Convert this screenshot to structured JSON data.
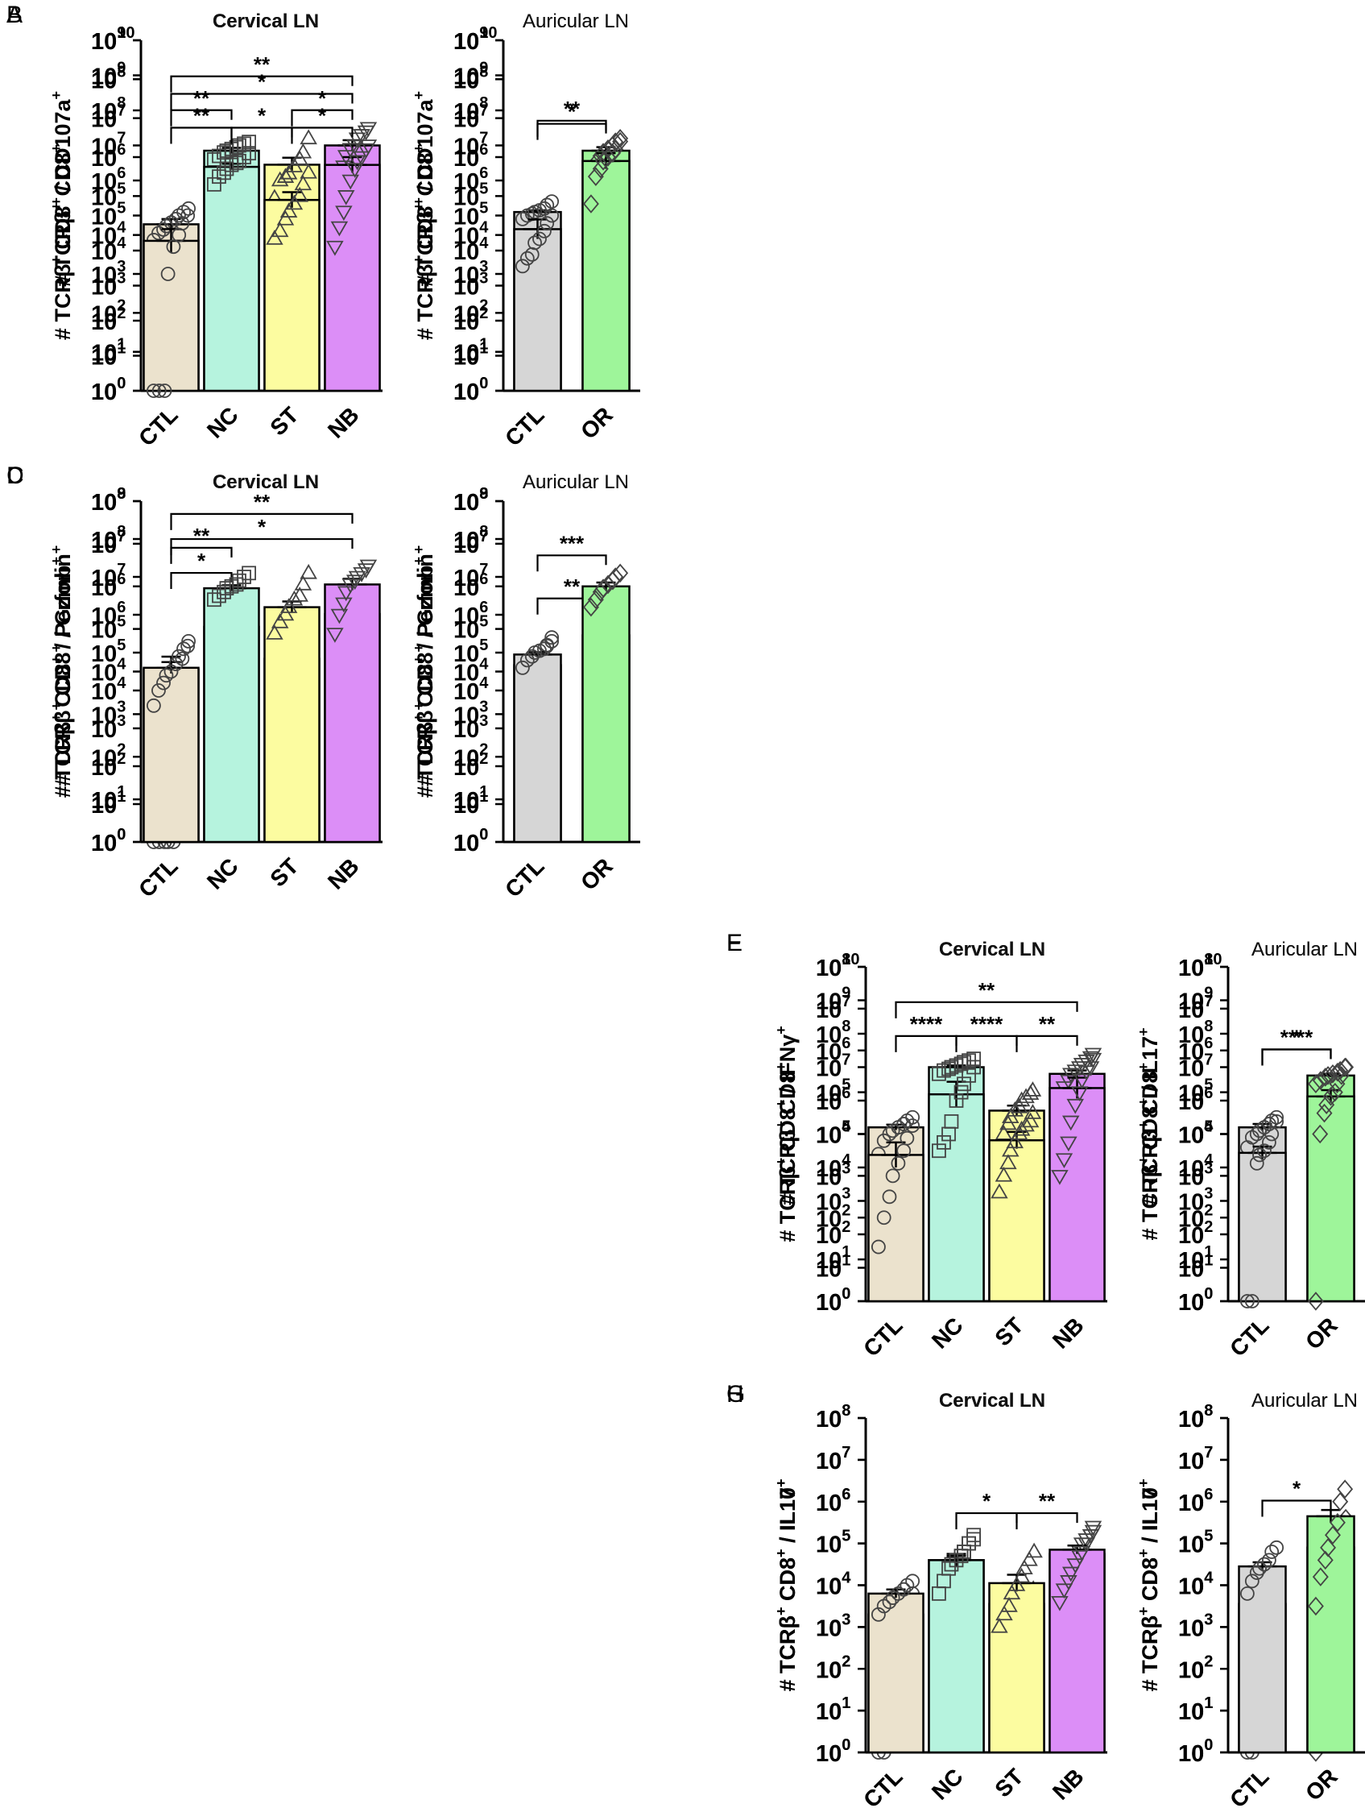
{
  "figure": {
    "colors": {
      "CTL_cervical": "#ebe2cd",
      "NC": "#b6f3de",
      "ST": "#fcfca0",
      "NB": "#dc8ef7",
      "CTL_auricular": "#d6d6d6",
      "OR": "#9ef59a",
      "axis": "#000000"
    },
    "marker_shapes": {
      "CTL": "circle",
      "NC": "square",
      "ST": "triangle-up",
      "NB": "triangle-down",
      "OR": "diamond"
    }
  },
  "chart_data": [
    {
      "id": "A1",
      "panel_letter": "A",
      "type": "bar",
      "title": "Cervical LN",
      "ylabel_text": "# TCRβ+ CD8+",
      "ylim_exp": [
        0,
        10
      ],
      "categories": [
        "CTL",
        "NC",
        "ST",
        "NB"
      ],
      "mean_exp": [
        4.75,
        6.85,
        6.45,
        7.0
      ],
      "sem_exp": [
        0.15,
        0.08,
        0.2,
        0.15
      ],
      "log_base": 10,
      "points_exp": [
        [
          4.3,
          4.5,
          4.6,
          4.7,
          4.8,
          4.9,
          5.0,
          5.1,
          5.2
        ],
        [
          6.6,
          6.7,
          6.8,
          6.85,
          6.9,
          6.95,
          7.0,
          7.05,
          7.1
        ],
        [
          5.5,
          6.0,
          6.1,
          6.2,
          6.4,
          6.6,
          6.8,
          7.2
        ],
        [
          5.8,
          6.1,
          6.4,
          6.7,
          6.9,
          7.0,
          7.2,
          7.3,
          7.4,
          7.5
        ]
      ],
      "significance": [
        {
          "from": "CTL",
          "to": "NB",
          "label": "**"
        },
        {
          "from": "CTL",
          "to": "NC",
          "label": "**"
        },
        {
          "from": "ST",
          "to": "NB",
          "label": "*"
        }
      ]
    },
    {
      "id": "A2",
      "panel_letter": "",
      "type": "bar",
      "title": "Auricular LN",
      "ylabel_text": "# TCRβ+ CD8+",
      "ylim_exp": [
        0,
        10
      ],
      "categories": [
        "CTL",
        "OR"
      ],
      "mean_exp": [
        5.1,
        6.85
      ],
      "sem_exp": [
        0.05,
        0.1
      ],
      "log_base": 10,
      "points_exp": [
        [
          4.9,
          5.0,
          5.05,
          5.1,
          5.15,
          5.2,
          5.3,
          5.4
        ],
        [
          6.3,
          6.5,
          6.7,
          6.8,
          6.9,
          7.0,
          7.1,
          7.2
        ]
      ],
      "significance": [
        {
          "from": "CTL",
          "to": "OR",
          "label": "**"
        }
      ]
    },
    {
      "id": "B1",
      "panel_letter": "B",
      "type": "bar",
      "title": "Cervical LN",
      "ylabel_text": "# TCRβ+ CD8+ / CD107a+",
      "ylim_exp": [
        0,
        9
      ],
      "categories": [
        "CTL",
        "NC",
        "ST",
        "NB"
      ],
      "mean_exp": [
        3.85,
        5.75,
        4.9,
        5.8
      ],
      "sem_exp": [
        0.3,
        0.08,
        0.2,
        0.2
      ],
      "log_base": 10,
      "points_exp": [
        [
          0,
          0,
          0,
          3.0,
          3.7,
          4.0,
          4.3,
          4.5
        ],
        [
          5.3,
          5.5,
          5.6,
          5.7,
          5.8,
          5.85,
          5.9,
          6.0,
          6.1
        ],
        [
          3.9,
          4.1,
          4.4,
          4.6,
          4.8,
          5.0,
          5.3,
          5.6
        ],
        [
          3.7,
          4.2,
          4.6,
          5.0,
          5.4,
          5.7,
          5.9,
          6.0,
          6.2,
          6.3
        ]
      ],
      "significance": [
        {
          "from": "CTL",
          "to": "NB",
          "label": "*"
        },
        {
          "from": "CTL",
          "to": "NC",
          "label": "**"
        },
        {
          "from": "NC",
          "to": "ST",
          "label": "*"
        },
        {
          "from": "ST",
          "to": "NB",
          "label": "*"
        }
      ]
    },
    {
      "id": "B2",
      "panel_letter": "",
      "type": "bar",
      "title": "Auricular LN",
      "ylabel_text": "# TCRβ+ CD8+ / CD107a+",
      "ylim_exp": [
        0,
        9
      ],
      "categories": [
        "CTL",
        "OR"
      ],
      "mean_exp": [
        4.15,
        5.9
      ],
      "sem_exp": [
        0.25,
        0.2
      ],
      "log_base": 10,
      "points_exp": [
        [
          3.2,
          3.4,
          3.5,
          3.8,
          3.9,
          4.1,
          4.3,
          4.5
        ],
        [
          4.8,
          5.5,
          5.7,
          5.9,
          6.0,
          6.1,
          6.2,
          6.4
        ]
      ],
      "significance": [
        {
          "from": "CTL",
          "to": "OR",
          "label": "*"
        }
      ]
    },
    {
      "id": "C1",
      "panel_letter": "C",
      "type": "bar",
      "title": "Cervical LN",
      "ylabel_text": "# TCRβ+ CD8+ / Gzmb+",
      "ylim_exp": [
        0,
        8
      ],
      "categories": [
        "CTL",
        "NC",
        "ST",
        "NB"
      ],
      "mean_exp": [
        4.05,
        5.05,
        4.3,
        5.35
      ],
      "sem_exp": [
        0.3,
        0.1,
        0.15,
        0.1
      ],
      "log_base": 10,
      "points_exp": [
        [
          0,
          0,
          0,
          0,
          0,
          3.8,
          4.3,
          4.6
        ],
        [
          4.3,
          4.6,
          4.8,
          5.0,
          5.1,
          5.2,
          5.4,
          5.6,
          5.7
        ],
        [
          3.4,
          3.8,
          4.0,
          4.2,
          4.4,
          4.5,
          4.7,
          5.2
        ],
        [
          3.0,
          3.7,
          4.3,
          4.8,
          5.1,
          5.3,
          5.5,
          5.6,
          5.8,
          5.9
        ]
      ],
      "significance": [
        {
          "from": "CTL",
          "to": "NB",
          "label": "*"
        },
        {
          "from": "CTL",
          "to": "NC",
          "label": "*"
        }
      ]
    },
    {
      "id": "C2",
      "panel_letter": "",
      "type": "bar",
      "title": "Auricular LN",
      "ylabel_text": "# TCRβ+ CD8+ / Gzmb+",
      "ylim_exp": [
        0,
        8
      ],
      "categories": [
        "CTL",
        "OR"
      ],
      "mean_exp": [
        4.15,
        4.85
      ],
      "sem_exp": [
        0.2,
        0.1
      ],
      "log_base": 10,
      "points_exp": [
        [
          3.0,
          3.2,
          3.4,
          3.6,
          3.9,
          4.2,
          4.6,
          4.8
        ],
        [
          4.3,
          4.5,
          4.7,
          4.8,
          4.9,
          5.0,
          5.1,
          5.3
        ]
      ],
      "significance": [
        {
          "from": "CTL",
          "to": "OR",
          "label": "**"
        }
      ]
    },
    {
      "id": "D1",
      "panel_letter": "D",
      "type": "bar",
      "title": "Cervical LN",
      "ylabel_text": "# TCRβ+ CD8+ / Perforin+",
      "ylim_exp": [
        0,
        9
      ],
      "categories": [
        "CTL",
        "NC",
        "ST",
        "NB"
      ],
      "mean_exp": [
        4.6,
        6.7,
        6.2,
        6.8
      ],
      "sem_exp": [
        0.15,
        0.08,
        0.15,
        0.15
      ],
      "log_base": 10,
      "points_exp": [
        [
          3.6,
          4.0,
          4.2,
          4.4,
          4.5,
          4.7,
          4.9,
          5.1,
          5.3
        ],
        [
          6.4,
          6.5,
          6.6,
          6.7,
          6.75,
          6.8,
          6.9,
          7.0,
          7.1
        ],
        [
          5.5,
          5.8,
          6.0,
          6.2,
          6.4,
          6.5,
          6.8,
          7.1
        ],
        [
          5.5,
          6.0,
          6.3,
          6.6,
          6.8,
          6.9,
          7.0,
          7.1,
          7.2,
          7.3
        ]
      ],
      "significance": [
        {
          "from": "CTL",
          "to": "NB",
          "label": "**"
        },
        {
          "from": "CTL",
          "to": "NC",
          "label": "**"
        }
      ]
    },
    {
      "id": "D2",
      "panel_letter": "",
      "type": "bar",
      "title": "Auricular LN",
      "ylabel_text": "# TCRβ+ CD8+ / Perforin+",
      "ylim_exp": [
        0,
        9
      ],
      "categories": [
        "CTL",
        "OR"
      ],
      "mean_exp": [
        4.95,
        6.75
      ],
      "sem_exp": [
        0.06,
        0.1
      ],
      "log_base": 10,
      "points_exp": [
        [
          4.6,
          4.8,
          4.9,
          5.0,
          5.05,
          5.1,
          5.2,
          5.3
        ],
        [
          6.2,
          6.4,
          6.6,
          6.7,
          6.8,
          6.9,
          7.0,
          7.1
        ]
      ],
      "significance": [
        {
          "from": "CTL",
          "to": "OR",
          "label": "***"
        }
      ]
    },
    {
      "id": "E1",
      "panel_letter": "E",
      "type": "bar",
      "title": "Cervical LN",
      "ylabel_text": "# TCRβ+ CD8+",
      "ylim_exp": [
        0,
        10
      ],
      "categories": [
        "CTL",
        "NC",
        "ST",
        "NB"
      ],
      "mean_exp": [
        5.2,
        7.0,
        5.7,
        6.8
      ],
      "sem_exp": [
        0.08,
        0.05,
        0.15,
        0.1
      ],
      "log_base": 10,
      "points_exp": [
        [
          4.4,
          4.8,
          5.0,
          5.1,
          5.2,
          5.3,
          5.4,
          5.5
        ],
        [
          6.8,
          6.9,
          6.95,
          7.0,
          7.05,
          7.1,
          7.15,
          7.2,
          7.25
        ],
        [
          4.5,
          5.0,
          5.3,
          5.5,
          5.7,
          5.8,
          6.0,
          6.1,
          6.2,
          6.3
        ],
        [
          6.0,
          6.4,
          6.6,
          6.8,
          6.9,
          7.0,
          7.1,
          7.2,
          7.3,
          7.4
        ]
      ],
      "significance": [
        {
          "from": "CTL",
          "to": "NB",
          "label": "**"
        },
        {
          "from": "CTL",
          "to": "NC",
          "label": "****"
        },
        {
          "from": "NC",
          "to": "ST",
          "label": "****"
        },
        {
          "from": "ST",
          "to": "NB",
          "label": "**"
        }
      ]
    },
    {
      "id": "E2",
      "panel_letter": "",
      "type": "bar",
      "title": "Auricular LN",
      "ylabel_text": "# TCRβ+ CD8+",
      "ylim_exp": [
        0,
        10
      ],
      "categories": [
        "CTL",
        "OR"
      ],
      "mean_exp": [
        5.2,
        6.75
      ],
      "sem_exp": [
        0.1,
        0.05
      ],
      "log_base": 10,
      "points_exp": [
        [
          4.6,
          4.9,
          5.0,
          5.1,
          5.2,
          5.3,
          5.4,
          5.5
        ],
        [
          6.5,
          6.6,
          6.7,
          6.75,
          6.8,
          6.85,
          6.9,
          7.0
        ]
      ],
      "significance": [
        {
          "from": "CTL",
          "to": "OR",
          "label": "****"
        }
      ]
    },
    {
      "id": "F1",
      "panel_letter": "F",
      "type": "bar",
      "title": "Cervical LN",
      "ylabel_text": "# TCRβ+ CD8+ / IFNγ+",
      "ylim_exp": [
        0,
        8
      ],
      "categories": [
        "CTL",
        "NC",
        "ST",
        "NB"
      ],
      "mean_exp": [
        3.5,
        4.95,
        3.85,
        5.1
      ],
      "sem_exp": [
        0.3,
        0.3,
        0.2,
        0.25
      ],
      "log_base": 10,
      "points_exp": [
        [
          1.3,
          2.0,
          2.5,
          3.0,
          3.3,
          3.6,
          3.9,
          4.2
        ],
        [
          3.6,
          3.8,
          4.0,
          4.3,
          4.8,
          5.0,
          5.2,
          5.4,
          5.6
        ],
        [
          2.6,
          3.0,
          3.3,
          3.6,
          3.8,
          4.0,
          4.1,
          4.2,
          4.3,
          4.5
        ],
        [
          3.0,
          3.4,
          3.8,
          4.3,
          4.7,
          5.0,
          5.3,
          5.5,
          5.6,
          5.8
        ]
      ],
      "significance": []
    },
    {
      "id": "F2",
      "panel_letter": "",
      "type": "bar",
      "title": "Auricular LN",
      "ylabel_text": "# TCRβ+ CD8+ / IL17+",
      "ylim_exp": [
        0,
        8
      ],
      "categories": [
        "CTL",
        "OR"
      ],
      "mean_exp": [
        3.55,
        4.9
      ],
      "sem_exp": [
        0.15,
        0.15
      ],
      "log_base": 10,
      "points_exp": [
        [
          0,
          0,
          3.3,
          3.5,
          3.6,
          3.8,
          4.0,
          4.3
        ],
        [
          0,
          4.0,
          4.5,
          4.7,
          4.9,
          5.0,
          5.2,
          5.4,
          5.6
        ]
      ],
      "significance": [
        {
          "from": "CTL",
          "to": "OR",
          "label": "*"
        }
      ]
    },
    {
      "id": "G1",
      "panel_letter": "G",
      "type": "bar",
      "title": "Cervical LN",
      "ylabel_text": "# TCRβ+ CD8+ / IL17+",
      "ylim_exp": [
        0,
        8
      ],
      "categories": [
        "CTL",
        "NC",
        "ST",
        "NB"
      ],
      "mean_exp": [
        3.3,
        4.6,
        3.55,
        4.75
      ],
      "sem_exp": [
        0.2,
        0.1,
        0.1,
        0.1
      ],
      "log_base": 10,
      "points_exp": [
        [
          0,
          0,
          2.8,
          3.0,
          3.3,
          3.5,
          3.6,
          3.8
        ],
        [
          4.0,
          4.2,
          4.4,
          4.5,
          4.6,
          4.7,
          4.8,
          5.0,
          5.1
        ],
        [
          3.0,
          3.2,
          3.4,
          3.5,
          3.6,
          3.7,
          3.8,
          3.9
        ],
        [
          3.6,
          3.9,
          4.2,
          4.5,
          4.6,
          4.8,
          5.0,
          5.1,
          5.2,
          5.3
        ]
      ],
      "significance": [
        {
          "from": "NC",
          "to": "ST",
          "label": "*"
        },
        {
          "from": "ST",
          "to": "NB",
          "label": "**"
        }
      ]
    },
    {
      "id": "G2",
      "panel_letter": "",
      "type": "bar",
      "title": "Auricular LN",
      "ylabel_text": "# TCRβ+ CD8+ / IL17+",
      "ylim_exp": [
        0,
        8
      ],
      "categories": [
        "CTL",
        "OR"
      ],
      "mean_exp": [
        3.55,
        4.9
      ],
      "sem_exp": [
        0.15,
        0.15
      ],
      "log_base": 10,
      "points_exp": [
        [
          0,
          0,
          3.3,
          3.5,
          3.6,
          3.8,
          4.0,
          4.3
        ],
        [
          0,
          4.0,
          4.5,
          4.7,
          4.9,
          5.0,
          5.2,
          5.4,
          5.6
        ]
      ],
      "significance": [
        {
          "from": "CTL",
          "to": "OR",
          "label": "*"
        }
      ]
    },
    {
      "id": "H1",
      "panel_letter": "H",
      "type": "bar",
      "title": "Cervical LN",
      "ylabel_text": "# TCRβ+ CD8+ / IL10+",
      "ylim_exp": [
        0,
        8
      ],
      "categories": [
        "CTL",
        "NC",
        "ST",
        "NB"
      ],
      "mean_exp": [
        3.8,
        4.6,
        4.05,
        4.85
      ],
      "sem_exp": [
        0.1,
        0.15,
        0.2,
        0.1
      ],
      "log_base": 10,
      "points_exp": [
        [
          3.3,
          3.5,
          3.6,
          3.7,
          3.8,
          3.9,
          4.0,
          4.1
        ],
        [
          3.8,
          4.1,
          4.4,
          4.5,
          4.6,
          4.7,
          4.8,
          5.0,
          5.2
        ],
        [
          3.0,
          3.3,
          3.5,
          3.8,
          4.0,
          4.2,
          4.4,
          4.6,
          4.8
        ],
        [
          3.6,
          3.9,
          4.1,
          4.3,
          4.5,
          4.7,
          4.8,
          5.0,
          5.2,
          5.4
        ]
      ],
      "significance": []
    },
    {
      "id": "H2",
      "panel_letter": "",
      "type": "bar",
      "title": "Auricular LN",
      "ylabel_text": "# TCRβ+ CD8+ / IL10+",
      "ylim_exp": [
        0,
        8
      ],
      "categories": [
        "CTL",
        "OR"
      ],
      "mean_exp": [
        4.45,
        5.65
      ],
      "sem_exp": [
        0.1,
        0.15
      ],
      "log_base": 10,
      "points_exp": [
        [
          3.8,
          4.1,
          4.3,
          4.4,
          4.5,
          4.6,
          4.8,
          4.9
        ],
        [
          3.5,
          4.2,
          4.6,
          4.9,
          5.2,
          5.5,
          6.0,
          6.3
        ]
      ],
      "significance": []
    }
  ]
}
